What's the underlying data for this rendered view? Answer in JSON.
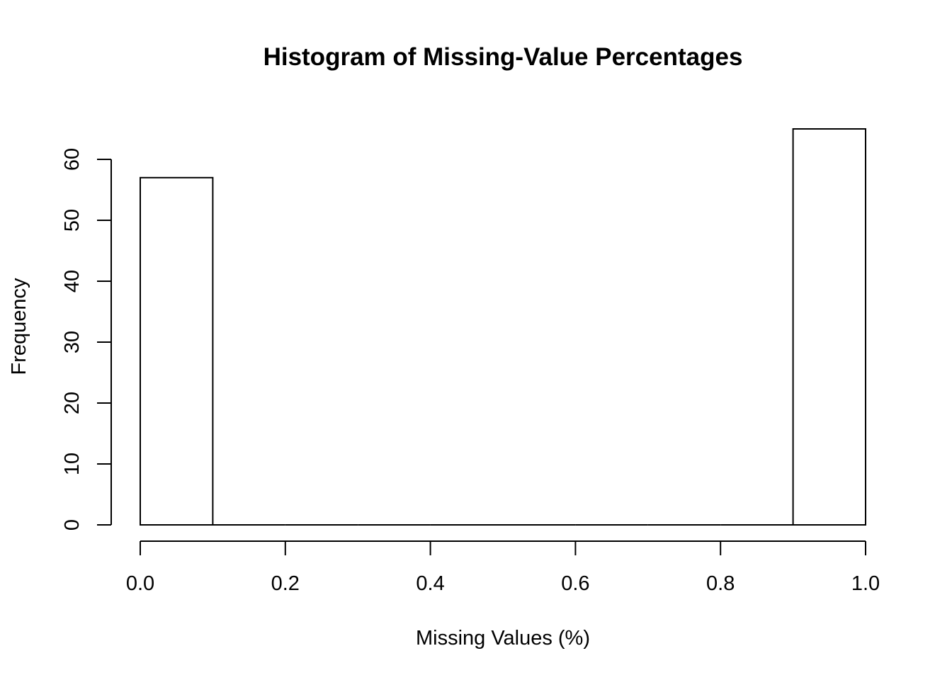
{
  "chart_data": {
    "type": "bar",
    "title": "Histogram of Missing-Value Percentages",
    "xlabel": "Missing Values (%)",
    "ylabel": "Frequency",
    "bins": [
      {
        "start": 0.0,
        "end": 0.1,
        "count": 57
      },
      {
        "start": 0.1,
        "end": 0.2,
        "count": 0
      },
      {
        "start": 0.2,
        "end": 0.3,
        "count": 0
      },
      {
        "start": 0.3,
        "end": 0.4,
        "count": 0
      },
      {
        "start": 0.4,
        "end": 0.5,
        "count": 0
      },
      {
        "start": 0.5,
        "end": 0.6,
        "count": 0
      },
      {
        "start": 0.6,
        "end": 0.7,
        "count": 0
      },
      {
        "start": 0.7,
        "end": 0.8,
        "count": 0
      },
      {
        "start": 0.8,
        "end": 0.9,
        "count": 0
      },
      {
        "start": 0.9,
        "end": 1.0,
        "count": 65
      }
    ],
    "xlim": [
      0.0,
      1.0
    ],
    "ylim": [
      0,
      65
    ],
    "x_ticks": [
      0.0,
      0.2,
      0.4,
      0.6,
      0.8,
      1.0
    ],
    "x_tick_labels": [
      "0.0",
      "0.2",
      "0.4",
      "0.6",
      "0.8",
      "1.0"
    ],
    "y_ticks": [
      0,
      10,
      20,
      30,
      40,
      50,
      60
    ],
    "y_tick_labels": [
      "0",
      "10",
      "20",
      "30",
      "40",
      "50",
      "60"
    ],
    "grid": false,
    "bar_fill": "#ffffff",
    "bar_stroke": "#000000"
  }
}
